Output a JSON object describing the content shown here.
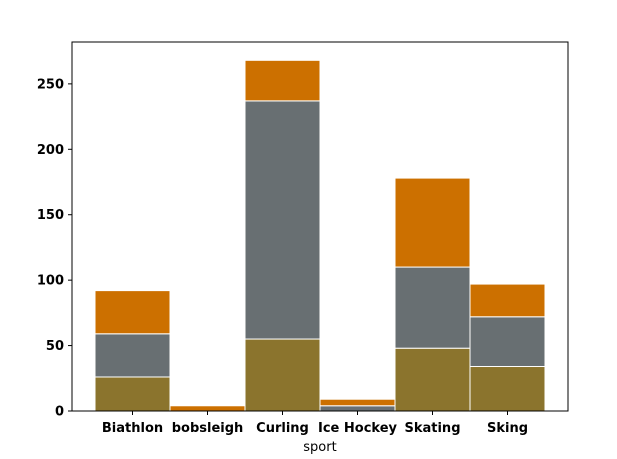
{
  "chart_data": {
    "type": "bar",
    "stacked": true,
    "categories": [
      "Biathlon",
      "bobsleigh",
      "Curling",
      "Ice Hockey",
      "Skating",
      "Sking"
    ],
    "series": [
      {
        "color": "#8b742d",
        "values": [
          26,
          0,
          55,
          0,
          48,
          34
        ]
      },
      {
        "color": "#686f72",
        "values": [
          33,
          0,
          182,
          4,
          62,
          38
        ]
      },
      {
        "color": "#cc7000",
        "values": [
          33,
          4,
          31,
          5,
          68,
          25
        ]
      }
    ],
    "xlabel": "sport",
    "ylabel": "",
    "ylim": [
      0,
      282
    ],
    "yticks": [
      0,
      50,
      100,
      150,
      200,
      250
    ],
    "grid": false,
    "legend": "none"
  }
}
